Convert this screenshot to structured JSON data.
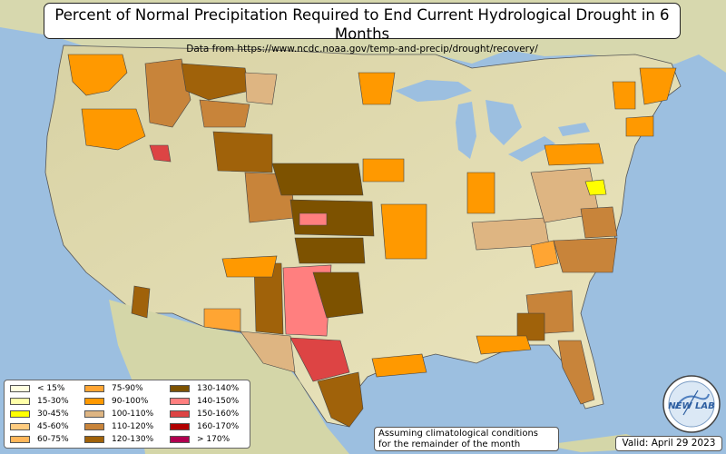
{
  "title": "Percent of Normal Precipitation Required to End Current Hydrological Drought in 6 Months",
  "subtitle": "Data from https://www.ncdc.noaa.gov/temp-and-precip/drought/recovery/",
  "note_line1": "Assuming climatological conditions",
  "note_line2": "for the remainder of the month",
  "valid": "Valid: April 29 2023",
  "logo_text": "NEW LAB",
  "colors": {
    "ocean": "#9cbfe0",
    "land": "#e4dfb5",
    "lakes": "#9cbfe0"
  },
  "legend": [
    {
      "label": "< 15%",
      "color": "#ffffe0"
    },
    {
      "label": "15-30%",
      "color": "#ffffa8"
    },
    {
      "label": "30-45%",
      "color": "#ffff00"
    },
    {
      "label": "45-60%",
      "color": "#ffcc80"
    },
    {
      "label": "60-75%",
      "color": "#ffb65a"
    },
    {
      "label": "75-90%",
      "color": "#ffa533"
    },
    {
      "label": "90-100%",
      "color": "#ff9900"
    },
    {
      "label": "100-110%",
      "color": "#deb582"
    },
    {
      "label": "110-120%",
      "color": "#c8843a"
    },
    {
      "label": "120-130%",
      "color": "#a0620a"
    },
    {
      "label": "130-140%",
      "color": "#7d5200"
    },
    {
      "label": "140-150%",
      "color": "#ff7f7f"
    },
    {
      "label": "150-160%",
      "color": "#dd4444"
    },
    {
      "label": "160-170%",
      "color": "#b20000"
    },
    {
      "label": "> 170%",
      "color": "#b0004f"
    }
  ]
}
